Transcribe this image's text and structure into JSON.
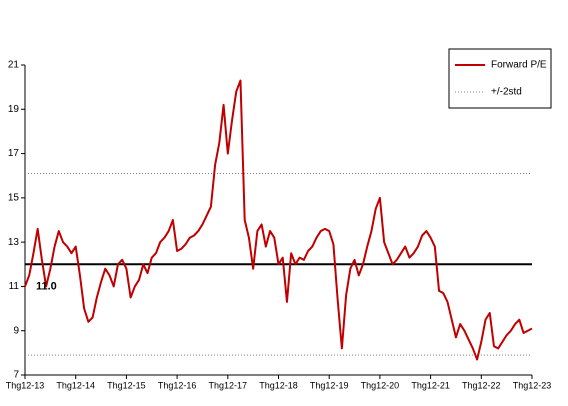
{
  "chart_data": {
    "type": "line",
    "categories": [
      "Thg12-13",
      null,
      null,
      null,
      null,
      null,
      null,
      null,
      null,
      null,
      null,
      null,
      "Thg12-14",
      null,
      null,
      null,
      null,
      null,
      null,
      null,
      null,
      null,
      null,
      null,
      "Thg12-15",
      null,
      null,
      null,
      null,
      null,
      null,
      null,
      null,
      null,
      null,
      null,
      "Thg12-16",
      null,
      null,
      null,
      null,
      null,
      null,
      null,
      null,
      null,
      null,
      null,
      "Thg12-17",
      null,
      null,
      null,
      null,
      null,
      null,
      null,
      null,
      null,
      null,
      null,
      "Thg12-18",
      null,
      null,
      null,
      null,
      null,
      null,
      null,
      null,
      null,
      null,
      null,
      "Thg12-19",
      null,
      null,
      null,
      null,
      null,
      null,
      null,
      null,
      null,
      null,
      null,
      "Thg12-20",
      null,
      null,
      null,
      null,
      null,
      null,
      null,
      null,
      null,
      null,
      null,
      "Thg12-21",
      null,
      null,
      null,
      null,
      null,
      null,
      null,
      null,
      null,
      null,
      null,
      "Thg12-22",
      null,
      null,
      null,
      null,
      null,
      null,
      null,
      null,
      null,
      null,
      null,
      "Thg12-23"
    ],
    "series": [
      {
        "name": "Forward P/E",
        "color": "#c00000",
        "values": [
          11.0,
          11.5,
          12.5,
          13.6,
          12.2,
          11.0,
          11.8,
          12.8,
          13.5,
          13.0,
          12.8,
          12.5,
          12.8,
          11.5,
          10.0,
          9.4,
          9.6,
          10.5,
          11.2,
          11.8,
          11.5,
          11.0,
          12.0,
          12.2,
          11.8,
          10.5,
          11.0,
          11.3,
          12.0,
          11.6,
          12.3,
          12.5,
          13.0,
          13.2,
          13.5,
          14.0,
          12.6,
          12.7,
          12.9,
          13.2,
          13.3,
          13.5,
          13.8,
          14.2,
          14.6,
          16.5,
          17.5,
          19.2,
          17.0,
          18.5,
          19.8,
          20.3,
          14.0,
          13.2,
          11.8,
          13.5,
          13.8,
          12.8,
          13.5,
          13.2,
          12.0,
          12.3,
          10.3,
          12.5,
          12.0,
          12.3,
          12.2,
          12.6,
          12.8,
          13.2,
          13.5,
          13.6,
          13.5,
          12.9,
          10.4,
          8.2,
          10.6,
          11.8,
          12.2,
          11.5,
          12.0,
          12.8,
          13.5,
          14.5,
          15.0,
          13.0,
          12.5,
          12.0,
          12.2,
          12.5,
          12.8,
          12.3,
          12.5,
          12.8,
          13.3,
          13.5,
          13.2,
          12.8,
          10.8,
          10.7,
          10.3,
          9.5,
          8.7,
          9.3,
          9.0,
          8.6,
          8.2,
          7.7,
          8.5,
          9.5,
          9.8,
          8.3,
          8.2,
          8.5,
          8.8,
          9.0,
          9.3,
          9.5,
          8.9,
          9.0,
          9.1
        ]
      }
    ],
    "mean_line": {
      "value": 12,
      "color": "#000000"
    },
    "std_band": {
      "name": "+/-2std",
      "upper": 16.1,
      "lower": 7.9,
      "color": "#808080"
    },
    "annotations": [
      {
        "text": "11.0",
        "x": 0,
        "y": 11,
        "color": "#c00000"
      }
    ],
    "ylim": [
      7,
      21
    ],
    "yticks": [
      7,
      9,
      11,
      13,
      15,
      17,
      19,
      21
    ],
    "legend": "top-right"
  }
}
